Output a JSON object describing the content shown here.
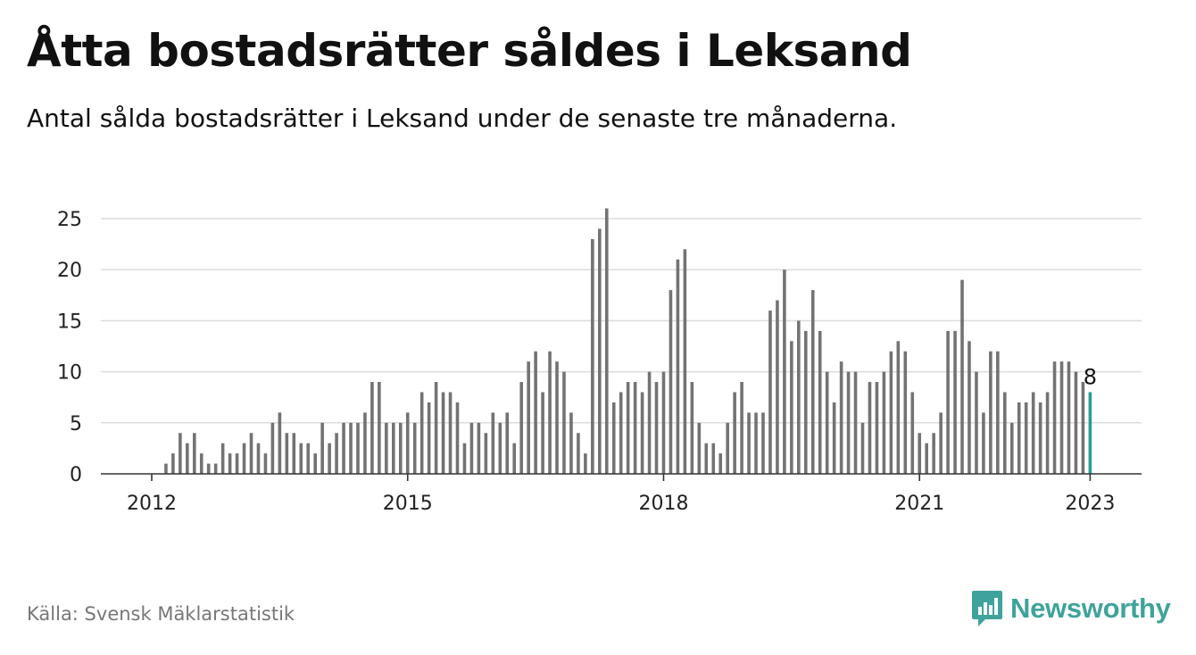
{
  "title": "Åtta bostadsrätter såldes i Leksand",
  "subtitle": "Antal sålda bostadsrätter i Leksand under de senaste tre månaderna.",
  "source": "Källa: Svensk Mäklarstatistik",
  "brand": {
    "name": "Newsworthy",
    "icon": "newsworthy-logo-icon",
    "color": "#3fa39b"
  },
  "chart_data": {
    "type": "bar",
    "title": "Åtta bostadsrätter såldes i Leksand",
    "subtitle": "Antal sålda bostadsrätter i Leksand under de senaste tre månaderna.",
    "xlabel": "",
    "ylabel": "",
    "ylim": [
      0,
      25
    ],
    "yticks": [
      0,
      5,
      10,
      15,
      20,
      25
    ],
    "xticks": [
      "2012",
      "2015",
      "2018",
      "2021",
      "2023"
    ],
    "x_start": "2012-01",
    "x_end": "2023-01",
    "bar_color": "#737373",
    "highlight_color": "#2a9d93",
    "highlight_label": "8",
    "grid": true,
    "values": [
      0,
      0,
      1,
      2,
      4,
      3,
      4,
      2,
      1,
      1,
      3,
      2,
      2,
      3,
      4,
      3,
      2,
      5,
      6,
      4,
      4,
      3,
      3,
      2,
      5,
      3,
      4,
      5,
      5,
      5,
      6,
      9,
      9,
      5,
      5,
      5,
      6,
      5,
      8,
      7,
      9,
      8,
      8,
      7,
      3,
      5,
      5,
      4,
      6,
      5,
      6,
      3,
      9,
      11,
      12,
      8,
      12,
      11,
      10,
      6,
      4,
      2,
      23,
      24,
      26,
      7,
      8,
      9,
      9,
      8,
      10,
      9,
      10,
      18,
      21,
      22,
      9,
      5,
      3,
      3,
      2,
      5,
      8,
      9,
      6,
      6,
      6,
      16,
      17,
      20,
      13,
      15,
      14,
      18,
      14,
      10,
      7,
      11,
      10,
      10,
      5,
      9,
      9,
      10,
      12,
      13,
      12,
      8,
      4,
      3,
      4,
      6,
      14,
      14,
      19,
      13,
      10,
      6,
      12,
      12,
      8,
      5,
      7,
      7,
      8,
      7,
      8,
      11,
      11,
      11,
      10,
      9,
      8
    ]
  }
}
